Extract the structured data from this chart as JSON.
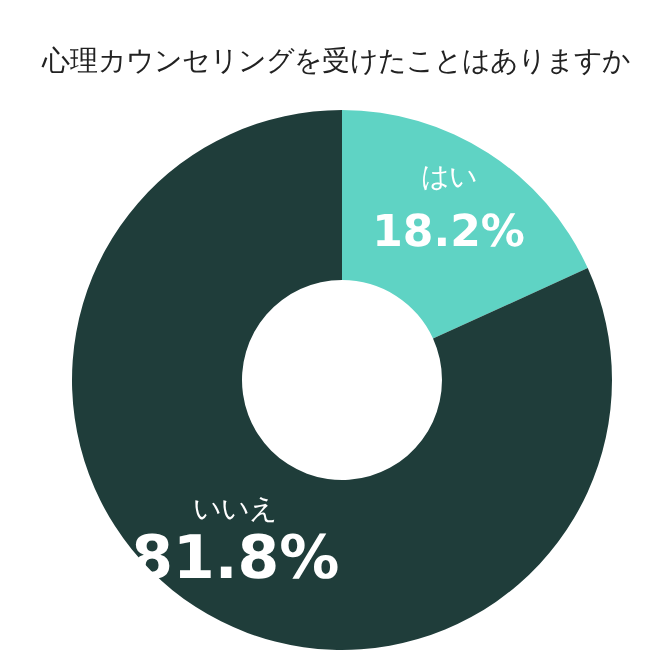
{
  "chart_data": {
    "type": "donut",
    "title": "心理カウンセリングを受けたことはありますか",
    "categories": [
      "はい",
      "いいえ"
    ],
    "values": [
      18.2,
      81.8
    ],
    "value_labels": [
      "18.2%",
      "81.8%"
    ],
    "colors": [
      "#5fd3c4",
      "#1f3d3a"
    ]
  }
}
